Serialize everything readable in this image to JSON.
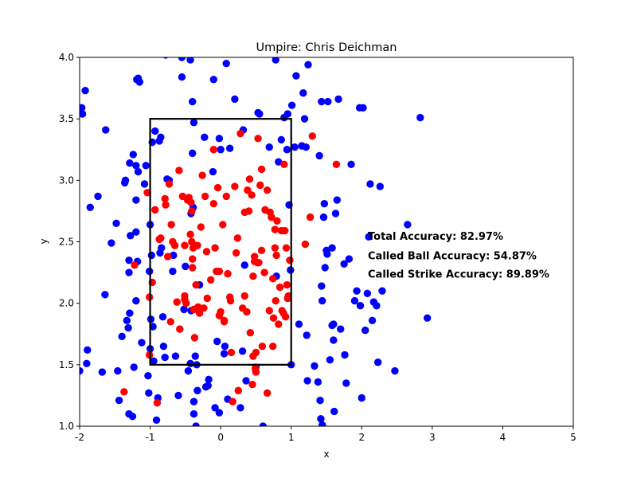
{
  "chart_data": {
    "type": "scatter",
    "title": "Umpire: Chris Deichman",
    "xlabel": "x",
    "ylabel": "y",
    "xlim": [
      -2,
      5
    ],
    "ylim": [
      1.0,
      4.0
    ],
    "xticks": [
      "-2",
      "-1",
      "0",
      "1",
      "2",
      "3",
      "4",
      "5"
    ],
    "yticks": [
      "1.0",
      "1.5",
      "2.0",
      "2.5",
      "3.0",
      "3.5",
      "4.0"
    ],
    "grid": false,
    "strike_zone": {
      "x": [
        -1,
        1
      ],
      "y": [
        1.5,
        3.5
      ]
    },
    "annotations": [
      {
        "text": "Total Accuracy: 82.97%",
        "x": 2.2,
        "y": 2.55
      },
      {
        "text": "Called Ball Accuracy: 54.87%",
        "x": 2.2,
        "y": 2.39
      },
      {
        "text": "Called Strike Accuracy: 89.89%",
        "x": 2.2,
        "y": 2.24
      }
    ],
    "series": [
      {
        "color": "#0000ff",
        "points": [
          [
            -1.97,
            3.59
          ],
          [
            -1.96,
            3.54
          ],
          [
            -1.92,
            3.73
          ],
          [
            -1.89,
            1.62
          ],
          [
            -1.9,
            1.51
          ],
          [
            -1.85,
            2.78
          ],
          [
            -2.0,
            1.45
          ],
          [
            -1.74,
            2.87
          ],
          [
            -1.68,
            1.44
          ],
          [
            -1.63,
            3.41
          ],
          [
            -1.64,
            2.07
          ],
          [
            -1.55,
            2.49
          ],
          [
            -1.48,
            2.65
          ],
          [
            -1.44,
            1.21
          ],
          [
            -1.46,
            1.45
          ],
          [
            -1.4,
            1.73
          ],
          [
            -1.36,
            2.98
          ],
          [
            -1.35,
            3.0
          ],
          [
            -1.33,
            1.86
          ],
          [
            -1.31,
            1.8
          ],
          [
            -1.3,
            2.35
          ],
          [
            -1.28,
            2.55
          ],
          [
            -1.29,
            1.92
          ],
          [
            -1.29,
            3.14
          ],
          [
            -1.3,
            2.25
          ],
          [
            -1.3,
            1.1
          ],
          [
            -1.25,
            1.08
          ],
          [
            -1.24,
            3.21
          ],
          [
            -1.2,
            3.12
          ],
          [
            -1.19,
            3.82
          ],
          [
            -1.17,
            3.83
          ],
          [
            -1.15,
            3.8
          ],
          [
            -1.17,
            3.07
          ],
          [
            -1.2,
            2.58
          ],
          [
            -1.18,
            2.34
          ],
          [
            -1.2,
            2.02
          ],
          [
            -1.23,
            1.48
          ],
          [
            -1.2,
            2.84
          ],
          [
            -1.12,
            1.68
          ],
          [
            -1.08,
            2.97
          ],
          [
            -1.06,
            3.12
          ],
          [
            -1.03,
            1.41
          ],
          [
            -1.02,
            1.27
          ],
          [
            -1.01,
            2.26
          ],
          [
            -0.98,
            2.39
          ],
          [
            -0.99,
            1.87
          ],
          [
            -1.0,
            1.63
          ],
          [
            -1.0,
            2.64
          ],
          [
            -0.97,
            3.31
          ],
          [
            -0.96,
            1.81
          ],
          [
            -0.95,
            1.53
          ],
          [
            -0.93,
            3.4
          ],
          [
            -0.91,
            1.05
          ],
          [
            -0.89,
            1.23
          ],
          [
            -0.87,
            3.32
          ],
          [
            -0.86,
            2.41
          ],
          [
            -0.84,
            2.45
          ],
          [
            -0.85,
            3.35
          ],
          [
            -0.82,
            1.89
          ],
          [
            -0.81,
            1.65
          ],
          [
            -0.79,
            1.56
          ],
          [
            -0.76,
            3.01
          ],
          [
            -0.73,
            3.0
          ],
          [
            -0.68,
            2.26
          ],
          [
            -0.67,
            2.39
          ],
          [
            -0.64,
            1.57
          ],
          [
            -0.6,
            1.25
          ],
          [
            -0.55,
            3.84
          ],
          [
            -0.5,
            2.3
          ],
          [
            -0.52,
            1.95
          ],
          [
            -0.46,
            1.45
          ],
          [
            -0.43,
            1.51
          ],
          [
            -0.42,
            1.94
          ],
          [
            -0.42,
            2.73
          ],
          [
            -0.4,
            3.64
          ],
          [
            -0.4,
            3.22
          ],
          [
            -0.39,
            2.78
          ],
          [
            -0.38,
            1.2
          ],
          [
            -0.38,
            1.1
          ],
          [
            -0.35,
            1.0
          ],
          [
            -0.36,
            1.57
          ],
          [
            -0.34,
            1.5
          ],
          [
            -0.33,
            1.29
          ],
          [
            -0.3,
            2.15
          ],
          [
            -0.23,
            3.35
          ],
          [
            -0.21,
            1.32
          ],
          [
            -0.18,
            1.33
          ],
          [
            -0.17,
            1.38
          ],
          [
            -0.11,
            3.07
          ],
          [
            -0.1,
            3.82
          ],
          [
            -0.08,
            1.15
          ],
          [
            -0.05,
            1.69
          ],
          [
            -0.02,
            3.34
          ],
          [
            -0.02,
            1.11
          ],
          [
            0.0,
            3.25
          ],
          [
            0.05,
            1.59
          ],
          [
            0.06,
            1.65
          ],
          [
            0.08,
            3.95
          ],
          [
            0.1,
            1.22
          ],
          [
            0.13,
            3.26
          ],
          [
            0.2,
            3.66
          ],
          [
            0.28,
            1.15
          ],
          [
            0.31,
            1.61
          ],
          [
            0.32,
            3.41
          ],
          [
            0.34,
            2.31
          ],
          [
            0.36,
            1.37
          ],
          [
            0.5,
            1.48
          ],
          [
            0.53,
            3.55
          ],
          [
            0.55,
            3.54
          ],
          [
            0.6,
            1.0
          ],
          [
            0.69,
            3.27
          ],
          [
            0.78,
            3.98
          ],
          [
            0.79,
            2.22
          ],
          [
            0.82,
            3.15
          ],
          [
            0.86,
            3.33
          ],
          [
            0.9,
            3.51
          ],
          [
            0.94,
            3.25
          ],
          [
            0.95,
            3.54
          ],
          [
            0.99,
            2.27
          ],
          [
            1.0,
            1.5
          ],
          [
            1.01,
            3.61
          ],
          [
            1.05,
            3.27
          ],
          [
            1.07,
            3.85
          ],
          [
            1.11,
            1.83
          ],
          [
            1.15,
            3.28
          ],
          [
            1.17,
            3.71
          ],
          [
            1.19,
            3.5
          ],
          [
            1.21,
            3.27
          ],
          [
            1.22,
            1.74
          ],
          [
            1.23,
            1.37
          ],
          [
            1.24,
            3.94
          ],
          [
            1.33,
            1.49
          ],
          [
            1.38,
            1.36
          ],
          [
            1.4,
            3.2
          ],
          [
            1.41,
            1.21
          ],
          [
            1.42,
            1.06
          ],
          [
            1.43,
            3.64
          ],
          [
            1.43,
            2.14
          ],
          [
            1.44,
            1.01
          ],
          [
            1.44,
            2.02
          ],
          [
            1.46,
            2.7
          ],
          [
            1.47,
            2.81
          ],
          [
            1.48,
            2.29
          ],
          [
            1.5,
            2.43
          ],
          [
            1.51,
            2.4
          ],
          [
            1.52,
            3.64
          ],
          [
            1.55,
            1.54
          ],
          [
            1.58,
            1.82
          ],
          [
            1.6,
            1.83
          ],
          [
            1.61,
            1.12
          ],
          [
            1.63,
            2.73
          ],
          [
            1.65,
            2.84
          ],
          [
            1.67,
            3.66
          ],
          [
            1.7,
            1.79
          ],
          [
            1.75,
            2.32
          ],
          [
            1.76,
            1.58
          ],
          [
            1.78,
            1.35
          ],
          [
            1.82,
            2.36
          ],
          [
            1.85,
            3.13
          ],
          [
            1.9,
            2.02
          ],
          [
            1.93,
            2.1
          ],
          [
            1.97,
            3.59
          ],
          [
            1.98,
            1.98
          ],
          [
            2.0,
            1.23
          ],
          [
            2.02,
            3.59
          ],
          [
            2.05,
            1.78
          ],
          [
            2.08,
            2.08
          ],
          [
            2.1,
            2.54
          ],
          [
            2.12,
            2.97
          ],
          [
            2.15,
            1.86
          ],
          [
            2.17,
            2.01
          ],
          [
            2.21,
            1.98
          ],
          [
            2.23,
            1.52
          ],
          [
            2.26,
            2.95
          ],
          [
            2.29,
            2.1
          ],
          [
            2.47,
            1.45
          ],
          [
            2.65,
            2.64
          ],
          [
            2.83,
            3.51
          ],
          [
            2.93,
            1.88
          ],
          [
            0.97,
            2.8
          ],
          [
            -0.78,
            4.02
          ],
          [
            -0.55,
            4.0
          ],
          [
            -0.43,
            3.98
          ],
          [
            -0.38,
            3.47
          ],
          [
            1.58,
            2.45
          ],
          [
            1.6,
            1.7
          ]
        ]
      },
      {
        "color": "#ff0000",
        "points": [
          [
            -1.37,
            1.28
          ],
          [
            -1.22,
            2.31
          ],
          [
            -1.04,
            2.9
          ],
          [
            -1.01,
            1.58
          ],
          [
            -0.97,
            2.17
          ],
          [
            -1.01,
            2.05
          ],
          [
            -0.93,
            2.76
          ],
          [
            -0.9,
            1.19
          ],
          [
            -0.87,
            2.52
          ],
          [
            -0.85,
            2.53
          ],
          [
            -0.79,
            2.85
          ],
          [
            -0.78,
            2.8
          ],
          [
            -0.75,
            2.38
          ],
          [
            -0.73,
            2.97
          ],
          [
            -0.71,
            1.85
          ],
          [
            -0.7,
            2.64
          ],
          [
            -0.68,
            2.5
          ],
          [
            -0.65,
            2.47
          ],
          [
            -0.59,
            3.08
          ],
          [
            -0.58,
            1.79
          ],
          [
            -0.54,
            2.87
          ],
          [
            -0.51,
            2.06
          ],
          [
            -0.51,
            2.47
          ],
          [
            -0.51,
            2.03
          ],
          [
            -0.49,
            2.0
          ],
          [
            -0.47,
            2.84
          ],
          [
            -0.45,
            2.86
          ],
          [
            -0.43,
            2.56
          ],
          [
            -0.42,
            2.82
          ],
          [
            -0.41,
            2.75
          ],
          [
            -0.41,
            2.5
          ],
          [
            -0.39,
            2.45
          ],
          [
            -0.4,
            2.36
          ],
          [
            -0.4,
            2.29
          ],
          [
            -0.38,
            1.95
          ],
          [
            -0.37,
            1.72
          ],
          [
            -0.35,
            2.15
          ],
          [
            -0.33,
            2.47
          ],
          [
            -0.32,
            1.97
          ],
          [
            -0.3,
            1.92
          ],
          [
            -0.28,
            2.62
          ],
          [
            -0.24,
            1.96
          ],
          [
            -0.22,
            2.87
          ],
          [
            -0.2,
            2.42
          ],
          [
            -0.19,
            2.04
          ],
          [
            -0.14,
            2.19
          ],
          [
            -0.1,
            3.25
          ],
          [
            -0.1,
            2.81
          ],
          [
            -0.08,
            2.45
          ],
          [
            -0.06,
            2.26
          ],
          [
            -0.04,
            2.94
          ],
          [
            -0.02,
            2.26
          ],
          [
            -0.02,
            1.9
          ],
          [
            0.0,
            1.93
          ],
          [
            0.03,
            2.64
          ],
          [
            0.05,
            1.86
          ],
          [
            0.05,
            1.85
          ],
          [
            0.08,
            2.87
          ],
          [
            0.1,
            2.24
          ],
          [
            0.13,
            2.05
          ],
          [
            0.14,
            2.02
          ],
          [
            0.15,
            1.6
          ],
          [
            0.2,
            2.95
          ],
          [
            0.22,
            2.41
          ],
          [
            0.24,
            2.53
          ],
          [
            0.28,
            3.38
          ],
          [
            0.31,
            1.96
          ],
          [
            0.34,
            2.74
          ],
          [
            0.34,
            2.06
          ],
          [
            0.37,
            1.93
          ],
          [
            0.38,
            2.92
          ],
          [
            0.4,
            2.75
          ],
          [
            0.41,
            3.01
          ],
          [
            0.42,
            1.76
          ],
          [
            0.44,
            2.88
          ],
          [
            0.46,
            2.22
          ],
          [
            0.46,
            1.57
          ],
          [
            0.48,
            2.38
          ],
          [
            0.49,
            1.47
          ],
          [
            0.5,
            1.6
          ],
          [
            0.5,
            1.44
          ],
          [
            0.52,
            2.33
          ],
          [
            0.54,
            2.33
          ],
          [
            0.56,
            2.96
          ],
          [
            0.58,
            3.09
          ],
          [
            0.58,
            2.43
          ],
          [
            0.59,
            1.65
          ],
          [
            0.62,
            2.25
          ],
          [
            0.63,
            2.76
          ],
          [
            0.66,
            2.92
          ],
          [
            0.66,
            1.27
          ],
          [
            0.69,
            1.94
          ],
          [
            0.7,
            2.74
          ],
          [
            0.72,
            2.7
          ],
          [
            0.74,
            2.2
          ],
          [
            0.75,
            1.88
          ],
          [
            0.77,
            2.6
          ],
          [
            0.77,
            2.45
          ],
          [
            0.78,
            2.02
          ],
          [
            0.79,
            2.39
          ],
          [
            0.8,
            2.67
          ],
          [
            0.82,
            1.83
          ],
          [
            0.84,
            2.13
          ],
          [
            0.86,
            2.59
          ],
          [
            0.87,
            1.94
          ],
          [
            0.89,
            1.92
          ],
          [
            0.9,
            3.13
          ],
          [
            0.91,
            2.59
          ],
          [
            0.92,
            1.89
          ],
          [
            0.93,
            2.45
          ],
          [
            0.94,
            2.15
          ],
          [
            0.95,
            2.04
          ],
          [
            0.96,
            2.06
          ],
          [
            0.98,
            2.35
          ],
          [
            1.2,
            2.48
          ],
          [
            1.27,
            2.7
          ],
          [
            1.3,
            3.36
          ],
          [
            1.64,
            3.13
          ],
          [
            0.25,
            1.29
          ],
          [
            0.17,
            1.2
          ],
          [
            0.45,
            1.34
          ],
          [
            0.53,
            3.34
          ],
          [
            0.74,
            1.65
          ],
          [
            0.48,
            2.34
          ],
          [
            -0.62,
            2.01
          ],
          [
            -0.26,
            3.04
          ]
        ]
      }
    ]
  }
}
